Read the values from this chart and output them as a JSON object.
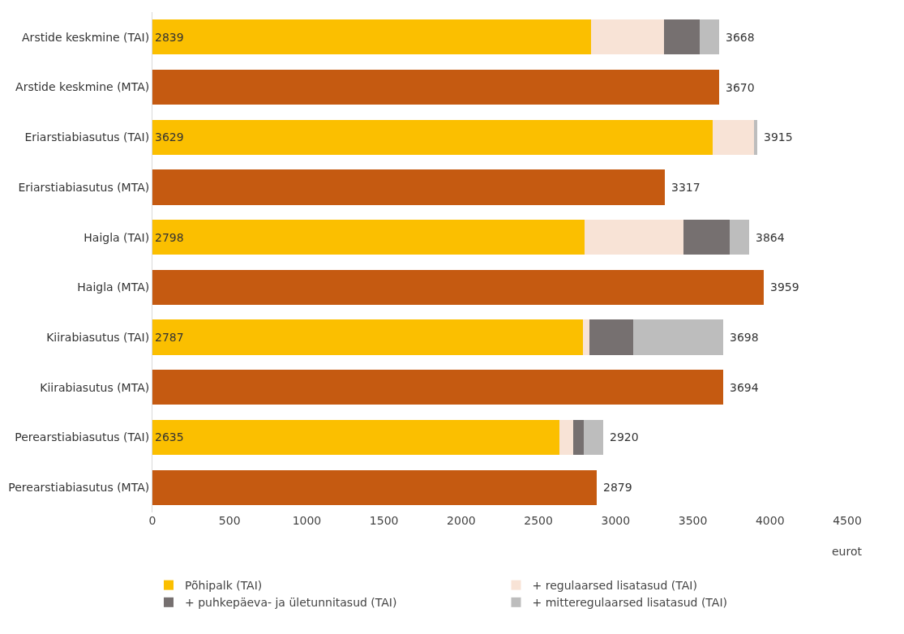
{
  "chart_data": {
    "type": "bar",
    "orientation": "horizontal",
    "stacked": true,
    "categories": [
      "Arstide keskmine (TAI)",
      "Arstide keskmine (MTA)",
      "Eriarstiabiasutus (TAI)",
      "Eriarstiabiasutus (MTA)",
      "Haigla (TAI)",
      "Haigla (MTA)",
      "Kiirabiasutus (TAI)",
      "Kiirabiasutus (MTA)",
      "Perearstiabiasutus (TAI)",
      "Perearstiabiasutus (MTA)"
    ],
    "series": [
      {
        "name": "Põhipalk (TAI)",
        "color": "#fbbf00",
        "values": [
          2839,
          null,
          3629,
          null,
          2798,
          null,
          2787,
          null,
          2635,
          null
        ],
        "value_labels": [
          "2839",
          null,
          "3629",
          null,
          "2798",
          null,
          "2787",
          null,
          "2635",
          null
        ]
      },
      {
        "name": "+ regulaarsed lisatasud (TAI)",
        "color": "#f8e3d6",
        "values": [
          474,
          null,
          269,
          null,
          639,
          null,
          43,
          null,
          88,
          null
        ]
      },
      {
        "name": "+ puhkepäeva- ja ületunnitasud (TAI)",
        "color": "#767070",
        "values": [
          229,
          null,
          0,
          null,
          303,
          null,
          282,
          null,
          71,
          null
        ]
      },
      {
        "name": "+ mitteregulaarsed lisatasud (TAI)",
        "color": "#bdbdbd",
        "values": [
          126,
          null,
          17,
          null,
          124,
          null,
          586,
          null,
          126,
          null
        ]
      },
      {
        "color": "#c55a11",
        "values": [
          null,
          3670,
          null,
          3317,
          null,
          3959,
          null,
          3694,
          null,
          2879
        ]
      }
    ],
    "totals": [
      "3668",
      "3670",
      "3915",
      "3317",
      "3864",
      "3959",
      "3698",
      "3694",
      "2920",
      "2879"
    ],
    "xlabel": "eurot",
    "xlim": [
      0,
      4500
    ],
    "xticks": [
      0,
      500,
      1000,
      1500,
      2000,
      2500,
      3000,
      3500,
      4000,
      4500
    ],
    "legend": "bottom"
  }
}
